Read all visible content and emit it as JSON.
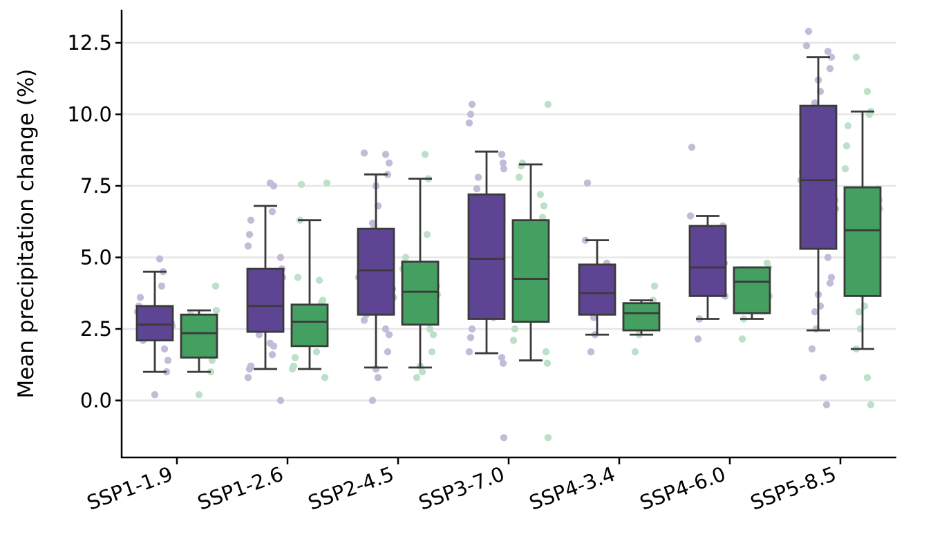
{
  "chart_data": {
    "type": "box",
    "title": "",
    "xlabel": "",
    "ylabel": "Mean precipitation change (%)",
    "ylim": [
      -2,
      13.8
    ],
    "yticks": [
      0.0,
      2.5,
      5.0,
      7.5,
      10.0,
      12.5
    ],
    "ytick_labels": [
      "0.0",
      "2.5",
      "5.0",
      "7.5",
      "10.0",
      "12.5"
    ],
    "grid": "horizontal",
    "categories": [
      "SSP1-1.9",
      "SSP1-2.6",
      "SSP2-4.5",
      "SSP3-7.0",
      "SSP4-3.4",
      "SSP4-6.0",
      "SSP5-8.5"
    ],
    "colors": {
      "purple": "#5e4594",
      "green": "#44a060",
      "purple_points": "#c4bbd9",
      "green_points": "#bde0c8",
      "box_edge": "#3a3a3a",
      "grid": "#e6e6e6"
    },
    "series": [
      {
        "color": "purple",
        "boxes": [
          {
            "whislo": 1.0,
            "q1": 2.1,
            "med": 2.65,
            "q3": 3.3,
            "whishi": 4.5,
            "points": [
              0.2,
              1.0,
              1.4,
              1.8,
              2.1,
              2.3,
              2.5,
              2.6,
              2.7,
              2.9,
              3.1,
              3.3,
              3.6,
              4.0,
              4.5,
              4.95
            ]
          },
          {
            "whislo": 1.1,
            "q1": 2.4,
            "med": 3.3,
            "q3": 4.6,
            "whishi": 6.8,
            "points": [
              0.0,
              0.8,
              1.1,
              1.2,
              1.6,
              1.9,
              2.0,
              2.3,
              2.5,
              2.8,
              2.9,
              3.0,
              3.2,
              3.4,
              3.5,
              3.6,
              3.9,
              4.1,
              4.3,
              4.6,
              5.0,
              5.4,
              5.8,
              6.3,
              6.6,
              7.5,
              7.6
            ]
          },
          {
            "whislo": 1.15,
            "q1": 3.0,
            "med": 4.55,
            "q3": 6.0,
            "whishi": 7.9,
            "points": [
              0.0,
              0.8,
              1.1,
              1.7,
              2.3,
              2.5,
              2.8,
              3.0,
              3.3,
              3.6,
              3.9,
              4.1,
              4.3,
              4.5,
              4.7,
              4.9,
              5.2,
              5.5,
              5.8,
              6.1,
              6.2,
              6.8,
              7.5,
              7.9,
              8.3,
              8.6,
              8.65
            ]
          },
          {
            "whislo": 1.65,
            "q1": 2.85,
            "med": 4.95,
            "q3": 7.2,
            "whishi": 8.7,
            "points": [
              -1.3,
              1.3,
              1.5,
              1.7,
              2.2,
              2.5,
              2.9,
              3.3,
              3.7,
              4.1,
              4.6,
              4.9,
              5.4,
              5.8,
              6.3,
              6.7,
              6.9,
              7.1,
              7.4,
              7.8,
              8.1,
              8.3,
              8.6,
              9.7,
              10.0,
              10.35
            ]
          },
          {
            "whislo": 2.3,
            "q1": 3.0,
            "med": 3.75,
            "q3": 4.75,
            "whishi": 5.6,
            "points": [
              1.7,
              2.3,
              2.9,
              3.3,
              3.6,
              4.0,
              4.4,
              4.8,
              5.6,
              7.6
            ]
          },
          {
            "whislo": 2.85,
            "q1": 3.65,
            "med": 4.65,
            "q3": 6.1,
            "whishi": 6.45,
            "points": [
              2.15,
              2.85,
              3.65,
              4.8,
              6.1,
              6.45,
              8.85
            ]
          },
          {
            "whislo": 2.45,
            "q1": 5.3,
            "med": 7.7,
            "q3": 10.3,
            "whishi": 12.0,
            "points": [
              -0.15,
              0.8,
              1.8,
              2.5,
              3.1,
              3.3,
              3.7,
              4.1,
              4.3,
              5.0,
              5.5,
              5.9,
              6.3,
              6.7,
              7.0,
              7.4,
              7.7,
              8.0,
              8.2,
              8.6,
              9.0,
              9.3,
              9.7,
              10.0,
              10.4,
              10.8,
              11.2,
              11.6,
              12.0,
              12.2,
              12.4,
              12.9
            ]
          }
        ]
      },
      {
        "color": "green",
        "boxes": [
          {
            "whislo": 1.0,
            "q1": 1.5,
            "med": 2.35,
            "q3": 3.0,
            "whishi": 3.15,
            "points": [
              0.2,
              1.0,
              1.4,
              1.9,
              2.3,
              2.6,
              3.0,
              3.15,
              4.0
            ]
          },
          {
            "whislo": 1.1,
            "q1": 1.9,
            "med": 2.75,
            "q3": 3.35,
            "whishi": 6.3,
            "points": [
              0.8,
              1.1,
              1.2,
              1.5,
              1.7,
              2.0,
              2.3,
              2.5,
              2.7,
              2.8,
              3.0,
              3.2,
              3.4,
              3.5,
              4.2,
              4.3,
              6.3,
              7.55,
              7.6
            ]
          },
          {
            "whislo": 1.15,
            "q1": 2.65,
            "med": 3.8,
            "q3": 4.85,
            "whishi": 7.75,
            "points": [
              0.8,
              1.0,
              1.2,
              1.7,
              2.3,
              2.5,
              2.8,
              3.1,
              3.4,
              3.7,
              4.0,
              4.3,
              4.6,
              4.8,
              5.0,
              5.8,
              7.75,
              8.6
            ]
          },
          {
            "whislo": 1.4,
            "q1": 2.75,
            "med": 4.25,
            "q3": 6.3,
            "whishi": 8.25,
            "points": [
              -1.3,
              1.3,
              1.7,
              2.1,
              2.5,
              2.9,
              3.3,
              3.7,
              4.1,
              4.4,
              4.8,
              5.1,
              5.4,
              5.9,
              6.4,
              6.8,
              7.2,
              7.8,
              8.2,
              8.3,
              10.35
            ]
          },
          {
            "whislo": 2.3,
            "q1": 2.45,
            "med": 3.05,
            "q3": 3.4,
            "whishi": 3.5,
            "points": [
              1.7,
              2.3,
              2.5,
              2.9,
              3.2,
              3.5,
              4.0
            ]
          },
          {
            "whislo": 2.85,
            "q1": 3.05,
            "med": 4.15,
            "q3": 4.65,
            "whishi": 4.65,
            "points": [
              2.15,
              2.85,
              3.65,
              4.65,
              4.8
            ]
          },
          {
            "whislo": 1.8,
            "q1": 3.65,
            "med": 5.95,
            "q3": 7.45,
            "whishi": 10.1,
            "points": [
              -0.15,
              0.8,
              1.8,
              2.5,
              3.1,
              3.3,
              3.7,
              4.2,
              4.6,
              5.0,
              5.4,
              5.9,
              6.3,
              6.7,
              7.0,
              7.4,
              8.1,
              8.9,
              9.6,
              10.0,
              10.1,
              10.8,
              12.0
            ]
          }
        ]
      }
    ]
  }
}
